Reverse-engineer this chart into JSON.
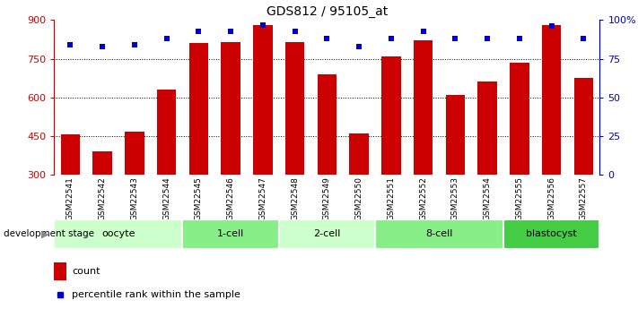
{
  "title": "GDS812 / 95105_at",
  "samples": [
    "GSM22541",
    "GSM22542",
    "GSM22543",
    "GSM22544",
    "GSM22545",
    "GSM22546",
    "GSM22547",
    "GSM22548",
    "GSM22549",
    "GSM22550",
    "GSM22551",
    "GSM22552",
    "GSM22553",
    "GSM22554",
    "GSM22555",
    "GSM22556",
    "GSM22557"
  ],
  "counts": [
    455,
    390,
    465,
    630,
    810,
    815,
    880,
    815,
    690,
    460,
    760,
    820,
    610,
    660,
    735,
    880,
    675
  ],
  "percentiles": [
    84,
    83,
    84,
    88,
    93,
    93,
    97,
    93,
    88,
    83,
    88,
    93,
    88,
    88,
    88,
    96,
    88
  ],
  "ymin": 300,
  "ymax": 900,
  "yticks": [
    300,
    450,
    600,
    750,
    900
  ],
  "right_yticks": [
    0,
    25,
    50,
    75,
    100
  ],
  "bar_color": "#cc0000",
  "dot_color": "#0000cc",
  "stages": [
    {
      "label": "oocyte",
      "start": 0,
      "end": 4,
      "color": "#ccffcc"
    },
    {
      "label": "1-cell",
      "start": 4,
      "end": 7,
      "color": "#88ee88"
    },
    {
      "label": "2-cell",
      "start": 7,
      "end": 10,
      "color": "#ccffcc"
    },
    {
      "label": "8-cell",
      "start": 10,
      "end": 14,
      "color": "#88ee88"
    },
    {
      "label": "blastocyst",
      "start": 14,
      "end": 17,
      "color": "#44cc44"
    }
  ],
  "legend_count_label": "count",
  "legend_pct_label": "percentile rank within the sample",
  "dev_stage_label": "development stage",
  "xtick_bg": "#cccccc"
}
